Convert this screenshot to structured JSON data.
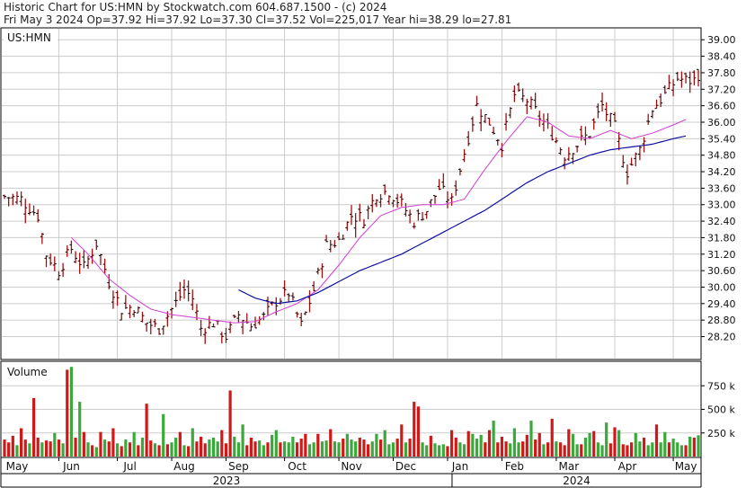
{
  "header": {
    "line1": "Historic Chart for US:HMN by Stockwatch.com 604.687.1500 - (c) 2024",
    "line2": "Fri May  3 2024   Op=37.92   Hi=37.92   Lo=37.30   Cl=37.52   Vol=225,017   Year hi=38.29   lo=27.81"
  },
  "colors": {
    "bar": "#a01010",
    "bar_tick": "#000000",
    "ma_short": "#d23cd2",
    "ma_long": "#1010a0",
    "vol_up": "#3aa83a",
    "vol_down": "#d01818",
    "grid": "#cccccc"
  },
  "chart_data": [
    {
      "type": "ohlc",
      "title": "US:HMN",
      "price_ticks": [
        "39.00",
        "38.40",
        "37.80",
        "37.20",
        "36.60",
        "36.00",
        "35.40",
        "34.80",
        "34.20",
        "33.60",
        "33.00",
        "32.40",
        "31.80",
        "31.20",
        "30.60",
        "30.00",
        "29.40",
        "28.80",
        "28.20"
      ],
      "ylim": [
        27.4,
        39.4
      ],
      "month_labels": [
        "May",
        "Jun",
        "Jul",
        "Aug",
        "Sep",
        "Oct",
        "Nov",
        "Dec",
        "Jan",
        "Feb",
        "Mar",
        "Apr",
        "May"
      ],
      "year_labels": [
        "2023",
        "2024"
      ],
      "last_bar": {
        "open": 37.92,
        "high": 37.92,
        "low": 37.3,
        "close": 37.52
      },
      "close_path": [
        [
          0,
          33.3
        ],
        [
          4,
          33.2
        ],
        [
          8,
          32.6
        ],
        [
          10,
          31.2
        ],
        [
          13,
          30.6
        ],
        [
          16,
          31.4
        ],
        [
          19,
          30.7
        ],
        [
          22,
          31.6
        ],
        [
          25,
          30.2
        ],
        [
          28,
          29.2
        ],
        [
          31,
          29.3
        ],
        [
          34,
          28.7
        ],
        [
          37,
          28.5
        ],
        [
          40,
          29.2
        ],
        [
          43,
          29.9
        ],
        [
          45,
          29.6
        ],
        [
          47,
          28.5
        ],
        [
          50,
          28.7
        ],
        [
          53,
          28.2
        ],
        [
          56,
          29.0
        ],
        [
          59,
          28.6
        ],
        [
          62,
          28.9
        ],
        [
          65,
          29.5
        ],
        [
          68,
          29.8
        ],
        [
          71,
          28.6
        ],
        [
          74,
          29.9
        ],
        [
          77,
          31.5
        ],
        [
          80,
          31.7
        ],
        [
          83,
          32.6
        ],
        [
          86,
          32.5
        ],
        [
          89,
          33.4
        ],
        [
          92,
          33.5
        ],
        [
          95,
          33.0
        ],
        [
          98,
          32.4
        ],
        [
          101,
          32.8
        ],
        [
          104,
          33.6
        ],
        [
          107,
          33.1
        ],
        [
          110,
          34.9
        ],
        [
          113,
          36.6
        ],
        [
          116,
          36.0
        ],
        [
          119,
          35.2
        ],
        [
          122,
          37.0
        ],
        [
          125,
          36.8
        ],
        [
          128,
          36.2
        ],
        [
          131,
          35.6
        ],
        [
          134,
          34.8
        ],
        [
          137,
          35.2
        ],
        [
          140,
          35.6
        ],
        [
          143,
          36.6
        ],
        [
          146,
          35.8
        ],
        [
          149,
          34.2
        ],
        [
          152,
          35.0
        ],
        [
          155,
          36.5
        ],
        [
          158,
          37.0
        ],
        [
          161,
          37.6
        ],
        [
          163,
          37.52
        ]
      ],
      "ma_short_path": [
        [
          16,
          31.8
        ],
        [
          20,
          31.2
        ],
        [
          25,
          30.3
        ],
        [
          30,
          29.7
        ],
        [
          35,
          29.2
        ],
        [
          40,
          29.0
        ],
        [
          45,
          28.9
        ],
        [
          50,
          28.8
        ],
        [
          55,
          28.7
        ],
        [
          60,
          28.75
        ],
        [
          65,
          29.1
        ],
        [
          70,
          29.4
        ],
        [
          75,
          29.9
        ],
        [
          80,
          30.8
        ],
        [
          85,
          31.8
        ],
        [
          90,
          32.6
        ],
        [
          95,
          32.9
        ],
        [
          100,
          33.0
        ],
        [
          105,
          33.0
        ],
        [
          110,
          33.2
        ],
        [
          115,
          34.3
        ],
        [
          120,
          35.3
        ],
        [
          125,
          36.2
        ],
        [
          130,
          36.0
        ],
        [
          135,
          35.5
        ],
        [
          140,
          35.4
        ],
        [
          145,
          35.7
        ],
        [
          150,
          35.4
        ],
        [
          155,
          35.6
        ],
        [
          160,
          35.9
        ],
        [
          163,
          36.1
        ]
      ],
      "ma_long_path": [
        [
          56,
          29.9
        ],
        [
          60,
          29.6
        ],
        [
          65,
          29.4
        ],
        [
          70,
          29.5
        ],
        [
          75,
          29.8
        ],
        [
          80,
          30.2
        ],
        [
          85,
          30.6
        ],
        [
          90,
          30.9
        ],
        [
          95,
          31.2
        ],
        [
          100,
          31.6
        ],
        [
          105,
          32.0
        ],
        [
          110,
          32.4
        ],
        [
          115,
          32.8
        ],
        [
          120,
          33.3
        ],
        [
          125,
          33.8
        ],
        [
          130,
          34.2
        ],
        [
          135,
          34.5
        ],
        [
          140,
          34.8
        ],
        [
          145,
          35.0
        ],
        [
          150,
          35.1
        ],
        [
          155,
          35.2
        ],
        [
          160,
          35.4
        ],
        [
          163,
          35.5
        ]
      ]
    },
    {
      "type": "bar",
      "title": "Volume",
      "volume_ticks": [
        "750 k",
        "500 k",
        "250 k"
      ],
      "ylim": [
        0,
        1000000
      ],
      "volume": [
        180000,
        150000,
        220000,
        120000,
        300000,
        180000,
        140000,
        620000,
        200000,
        150000,
        170000,
        160000,
        250000,
        180000,
        140000,
        920000,
        950000,
        200000,
        580000,
        260000,
        150000,
        120000,
        100000,
        260000,
        180000,
        160000,
        300000,
        140000,
        110000,
        180000,
        150000,
        260000,
        120000,
        200000,
        560000,
        170000,
        140000,
        120000,
        450000,
        130000,
        150000,
        200000,
        260000,
        120000,
        110000,
        300000,
        160000,
        210000,
        140000,
        180000,
        200000,
        160000,
        280000,
        140000,
        700000,
        210000,
        150000,
        340000,
        120000,
        200000,
        160000,
        170000,
        120000,
        150000,
        230000,
        280000,
        150000,
        160000,
        150000,
        210000,
        150000,
        190000,
        240000,
        130000,
        150000,
        240000,
        160000,
        170000,
        290000,
        160000,
        150000,
        190000,
        240000,
        180000,
        160000,
        200000,
        180000,
        130000,
        160000,
        240000,
        180000,
        280000,
        130000,
        150000,
        190000,
        340000,
        150000,
        190000,
        580000,
        530000,
        150000,
        120000,
        220000,
        140000,
        120000,
        130000,
        110000,
        280000,
        200000,
        150000,
        130000,
        270000,
        240000,
        190000,
        230000,
        150000,
        280000,
        380000,
        150000,
        210000,
        160000,
        140000,
        300000,
        150000,
        160000,
        230000,
        380000,
        180000,
        250000,
        130000,
        150000,
        400000,
        160000,
        150000,
        120000,
        290000,
        240000,
        130000,
        130000,
        200000,
        250000,
        270000,
        150000,
        120000,
        360000,
        140000,
        310000,
        280000,
        130000,
        120000,
        150000,
        250000,
        160000,
        200000,
        120000,
        150000,
        340000,
        150000,
        260000,
        150000,
        190000,
        150000,
        120000,
        120000,
        210000,
        200000,
        225017
      ]
    }
  ]
}
